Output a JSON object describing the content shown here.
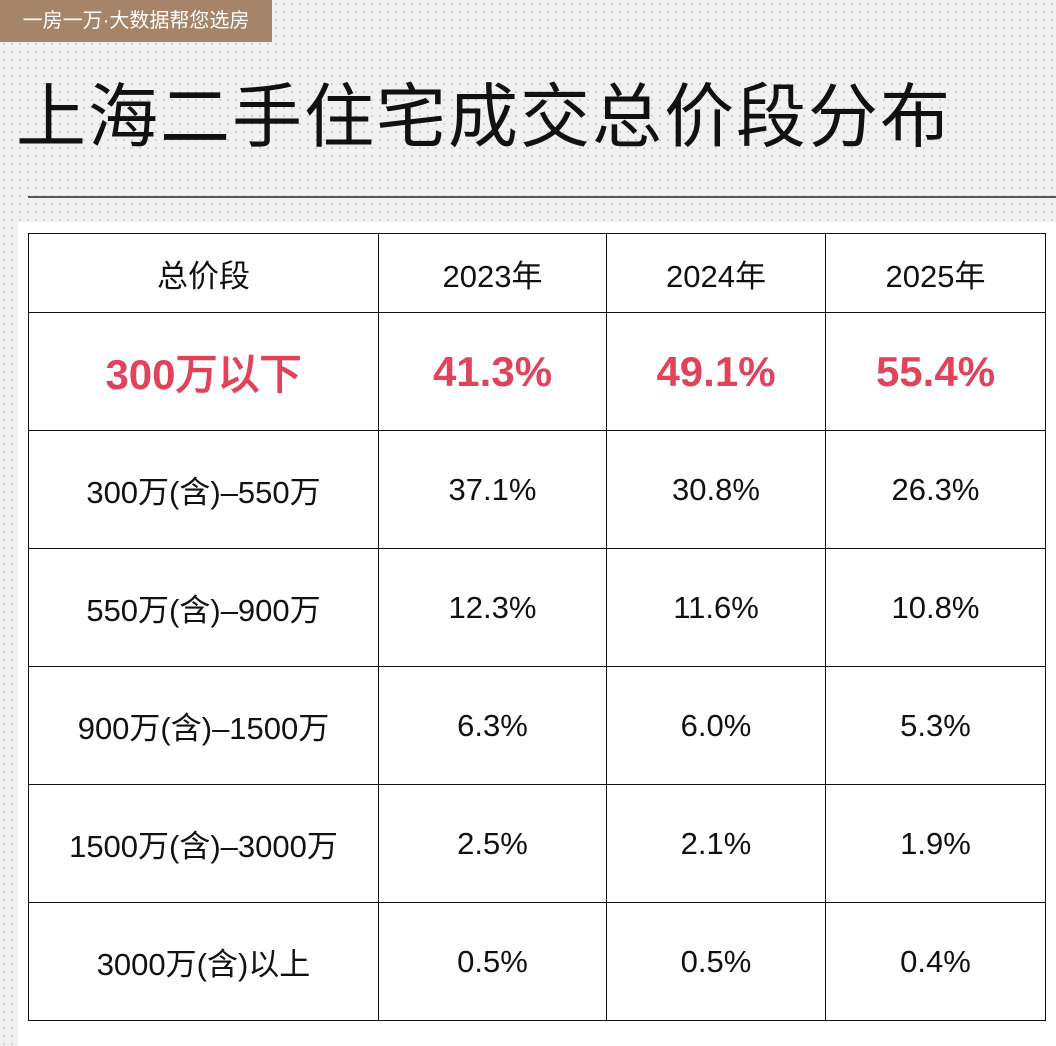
{
  "header": {
    "tag": "一房一万·大数据帮您选房",
    "title": "上海二手住宅成交总价段分布"
  },
  "table": {
    "columns": [
      "总价段",
      "2023年",
      "2024年",
      "2025年"
    ],
    "rows": [
      [
        "300万以下",
        "41.3%",
        "49.1%",
        "55.4%"
      ],
      [
        "300万(含)–550万",
        "37.1%",
        "30.8%",
        "26.3%"
      ],
      [
        "550万(含)–900万",
        "12.3%",
        "11.6%",
        "10.8%"
      ],
      [
        "900万(含)–1500万",
        "6.3%",
        "6.0%",
        "5.3%"
      ],
      [
        "1500万(含)–3000万",
        "2.5%",
        "2.1%",
        "1.9%"
      ],
      [
        "3000万(含)以上",
        "0.5%",
        "0.5%",
        "0.4%"
      ]
    ],
    "highlight_row": 0
  }
}
